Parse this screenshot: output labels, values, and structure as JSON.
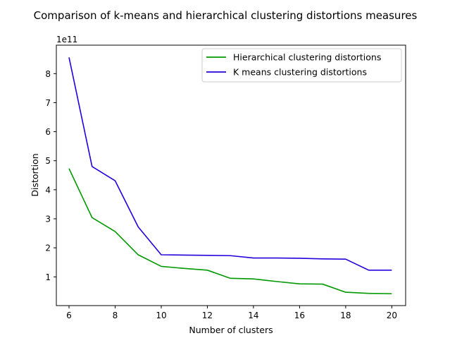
{
  "chart_data": {
    "type": "line",
    "title": "Comparison of k-means and hierarchical clustering distortions measures",
    "xlabel": "Number of clusters",
    "ylabel": "Distortion",
    "y_offset_label": "1e11",
    "xlim": [
      5.45,
      20.6
    ],
    "ylim": [
      0.01,
      8.98
    ],
    "x_ticks": [
      6,
      8,
      10,
      12,
      14,
      16,
      18,
      20
    ],
    "y_ticks": [
      1,
      2,
      3,
      4,
      5,
      6,
      7,
      8
    ],
    "grid": false,
    "legend_position": "upper right",
    "x": [
      6,
      7,
      8,
      9,
      10,
      11,
      12,
      13,
      14,
      15,
      16,
      17,
      18,
      19,
      20
    ],
    "series": [
      {
        "name": "Hierarchical clustering distortions",
        "color": "#009900",
        "values": [
          4.73,
          3.04,
          2.56,
          1.76,
          1.36,
          1.29,
          1.23,
          0.95,
          0.93,
          0.84,
          0.76,
          0.75,
          0.47,
          0.43,
          0.42
        ]
      },
      {
        "name": "K means clustering distortions",
        "color": "#2200dd",
        "values": [
          8.56,
          4.8,
          4.31,
          2.72,
          1.76,
          1.75,
          1.74,
          1.73,
          1.65,
          1.65,
          1.64,
          1.62,
          1.61,
          1.23,
          1.23
        ]
      }
    ]
  }
}
